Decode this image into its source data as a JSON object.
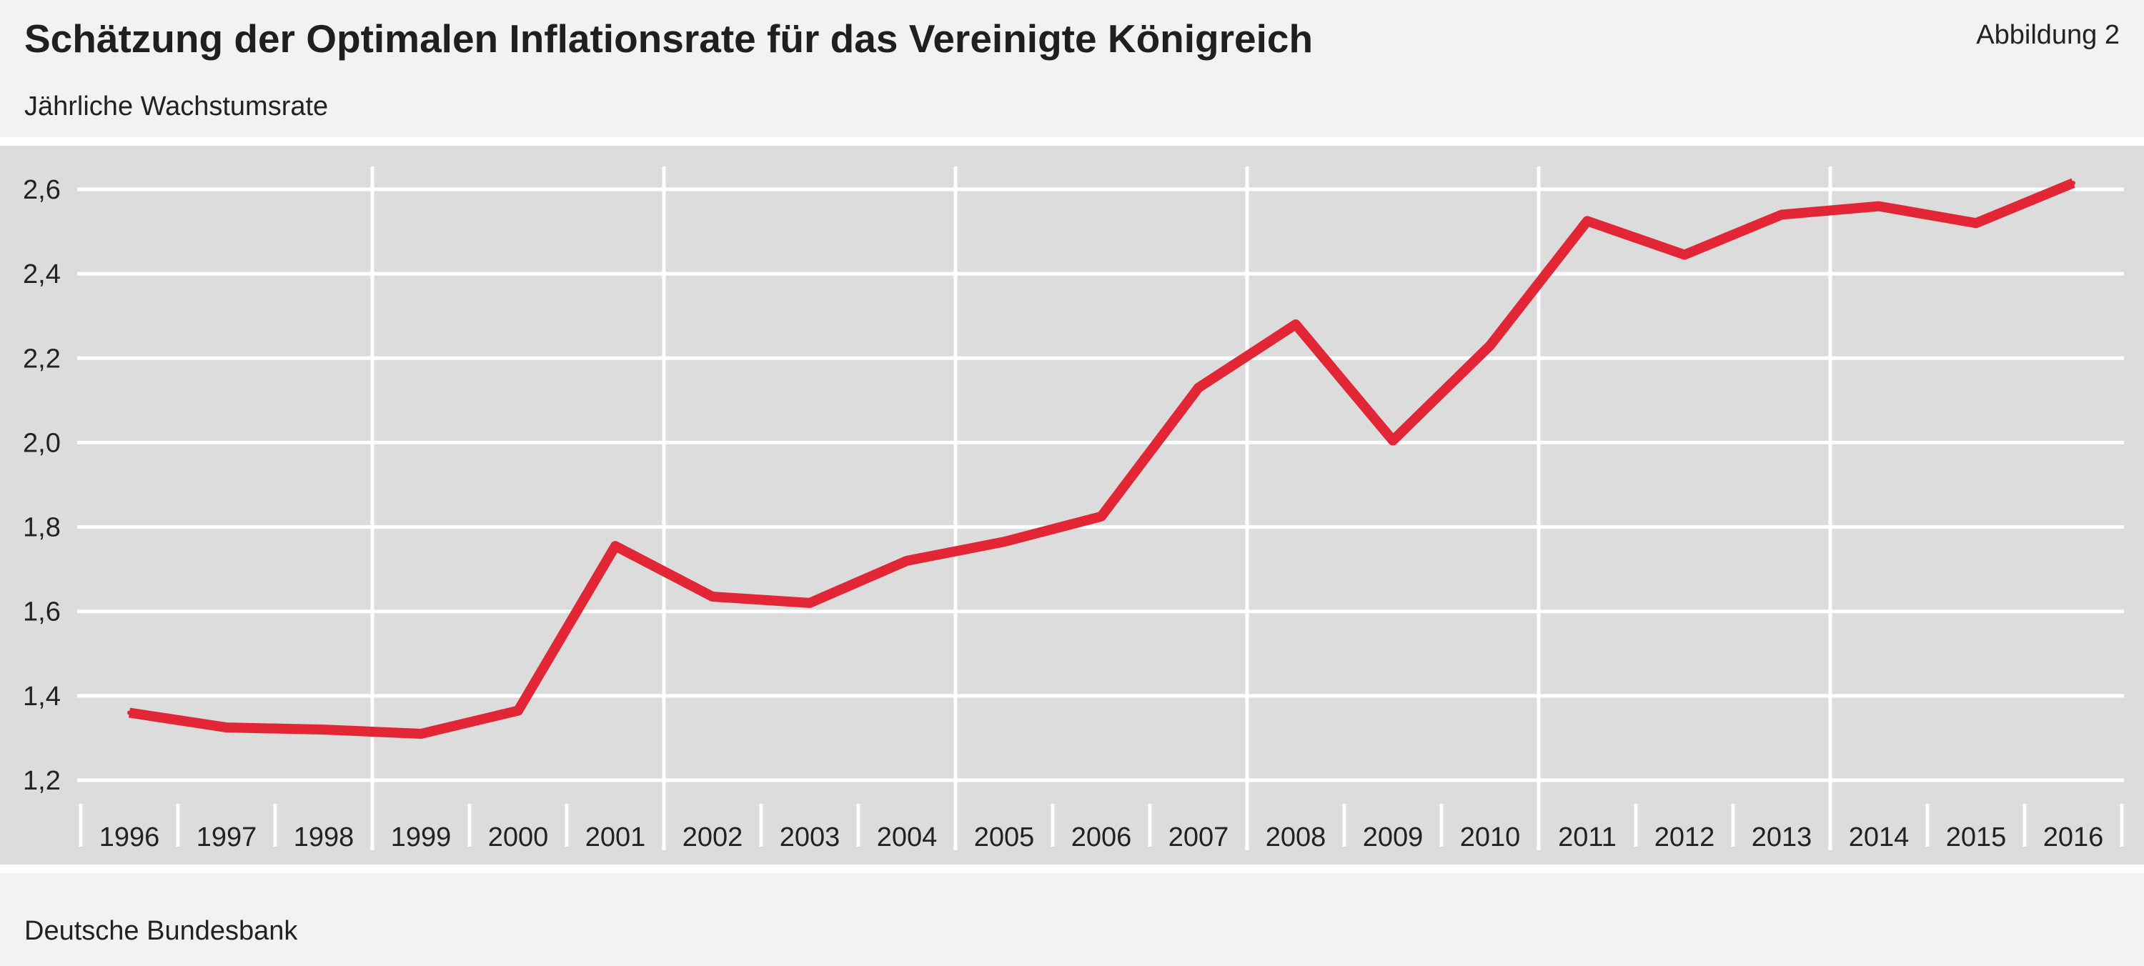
{
  "header": {
    "title": "Schätzung der Optimalen Inflationsrate für das Vereinigte Königreich",
    "figure_label": "Abbildung 2",
    "subtitle": "Jährliche Wachstumsrate"
  },
  "footer": {
    "source": "Deutsche Bundesbank"
  },
  "colors": {
    "line": "#e32636",
    "plot_background": "#dcdcdc",
    "grid": "#ffffff",
    "page_background": "#f2f2f2"
  },
  "chart_data": {
    "type": "line",
    "title": "Schätzung der Optimalen Inflationsrate für das Vereinigte Königreich",
    "subtitle": "Jährliche Wachstumsrate",
    "xlabel": "",
    "ylabel": "",
    "categories": [
      "1996",
      "1997",
      "1998",
      "1999",
      "2000",
      "2001",
      "2002",
      "2003",
      "2004",
      "2005",
      "2006",
      "2007",
      "2008",
      "2009",
      "2010",
      "2011",
      "2012",
      "2013",
      "2014",
      "2015",
      "2016"
    ],
    "series": [
      {
        "values": [
          1.36,
          1.325,
          1.32,
          1.31,
          1.365,
          1.755,
          1.635,
          1.62,
          1.72,
          1.765,
          1.825,
          2.13,
          2.28,
          2.005,
          2.23,
          2.525,
          2.445,
          2.54,
          2.56,
          2.52,
          2.615
        ]
      }
    ],
    "ylim": [
      1.2,
      2.65
    ],
    "yticks": [
      1.2,
      1.4,
      1.6,
      1.8,
      2.0,
      2.2,
      2.4,
      2.6
    ],
    "ytick_labels": [
      "1,2",
      "1,4",
      "1,6",
      "1,8",
      "2,0",
      "2,2",
      "2,4",
      "2,6"
    ],
    "major_x_gridlines_at": [
      "1999",
      "2002",
      "2005",
      "2008",
      "2011",
      "2014"
    ],
    "grid": true,
    "legend": "none"
  }
}
